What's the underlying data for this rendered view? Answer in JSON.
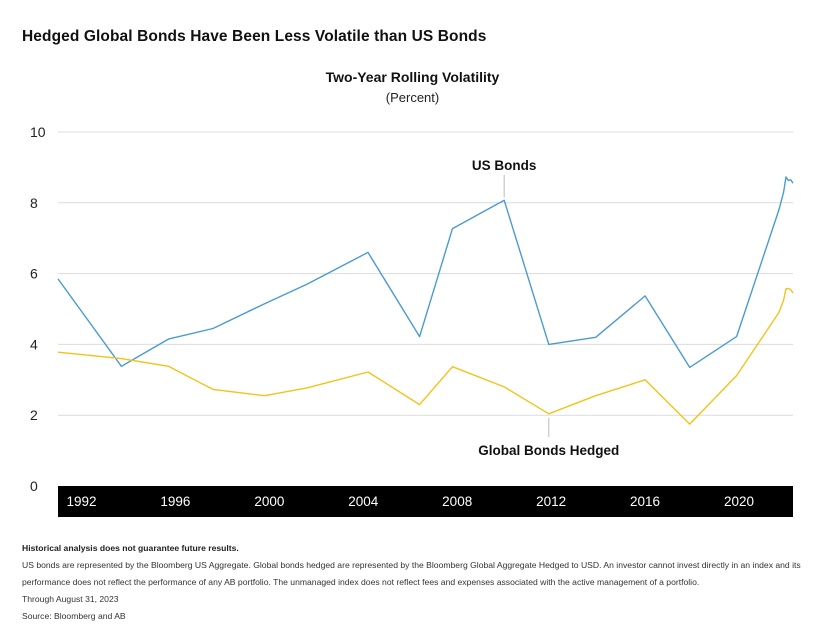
{
  "headline": "Hedged Global Bonds Have Been Less Volatile than US Bonds",
  "colors": {
    "us_bonds": "#4a9bd1",
    "global_hedged": "#f2c31b",
    "axis_band": "#000000",
    "grid": "#dcdcdc"
  },
  "chart_data": {
    "type": "line",
    "title": "Two-Year Rolling Volatility",
    "subtitle": "(Percent)",
    "ylim": [
      0,
      10
    ],
    "yticks": [
      "0",
      "2",
      "4",
      "6",
      "8",
      "10"
    ],
    "xlim": [
      1991.0,
      2022.3
    ],
    "xticks": [
      "1992",
      "1996",
      "2000",
      "2004",
      "2008",
      "2012",
      "2016",
      "2020"
    ],
    "grid": true,
    "series": [
      {
        "name": "US Bonds",
        "x": [
          1991.0,
          1993.7,
          1995.7,
          1997.6,
          1999.8,
          2001.6,
          2004.2,
          2006.4,
          2007.8,
          2010.0,
          2011.9,
          2013.9,
          2016.0,
          2017.9,
          2019.9,
          2021.7,
          2021.9,
          2022.0,
          2022.1,
          2022.2,
          2022.3
        ],
        "y": [
          5.85,
          3.38,
          4.15,
          4.45,
          5.15,
          5.7,
          6.6,
          4.22,
          7.27,
          8.07,
          4.0,
          4.2,
          5.37,
          3.35,
          4.22,
          7.8,
          8.3,
          8.73,
          8.63,
          8.65,
          8.55
        ]
      },
      {
        "name": "Global Bonds Hedged",
        "x": [
          1991.0,
          1993.7,
          1995.7,
          1997.6,
          1999.8,
          2001.6,
          2004.2,
          2006.4,
          2007.8,
          2010.0,
          2011.9,
          2013.9,
          2016.0,
          2017.9,
          2019.9,
          2021.7,
          2021.9,
          2022.0,
          2022.1,
          2022.2,
          2022.3
        ],
        "y": [
          3.78,
          3.6,
          3.38,
          2.73,
          2.55,
          2.77,
          3.22,
          2.3,
          3.37,
          2.8,
          2.04,
          2.55,
          3.0,
          1.75,
          3.12,
          4.9,
          5.25,
          5.57,
          5.58,
          5.55,
          5.45
        ]
      }
    ],
    "annotations": [
      {
        "label": "US Bonds",
        "x": 2010.0,
        "y": 8.07
      },
      {
        "label": "Global Bonds Hedged",
        "x": 2011.9,
        "y": 2.04
      }
    ]
  },
  "notes": {
    "disclaimer": "Historical analysis does not guarantee future results.",
    "body": "US bonds are represented by the Bloomberg US Aggregate. Global bonds hedged are represented by the Bloomberg Global Aggregate Hedged to USD. An investor cannot invest directly in an index and its performance does not reflect the performance of any AB portfolio. The unmanaged index does not reflect fees and expenses associated with the active management of a portfolio.",
    "through": "Through August 31, 2023",
    "source": "Source: Bloomberg and AB"
  }
}
